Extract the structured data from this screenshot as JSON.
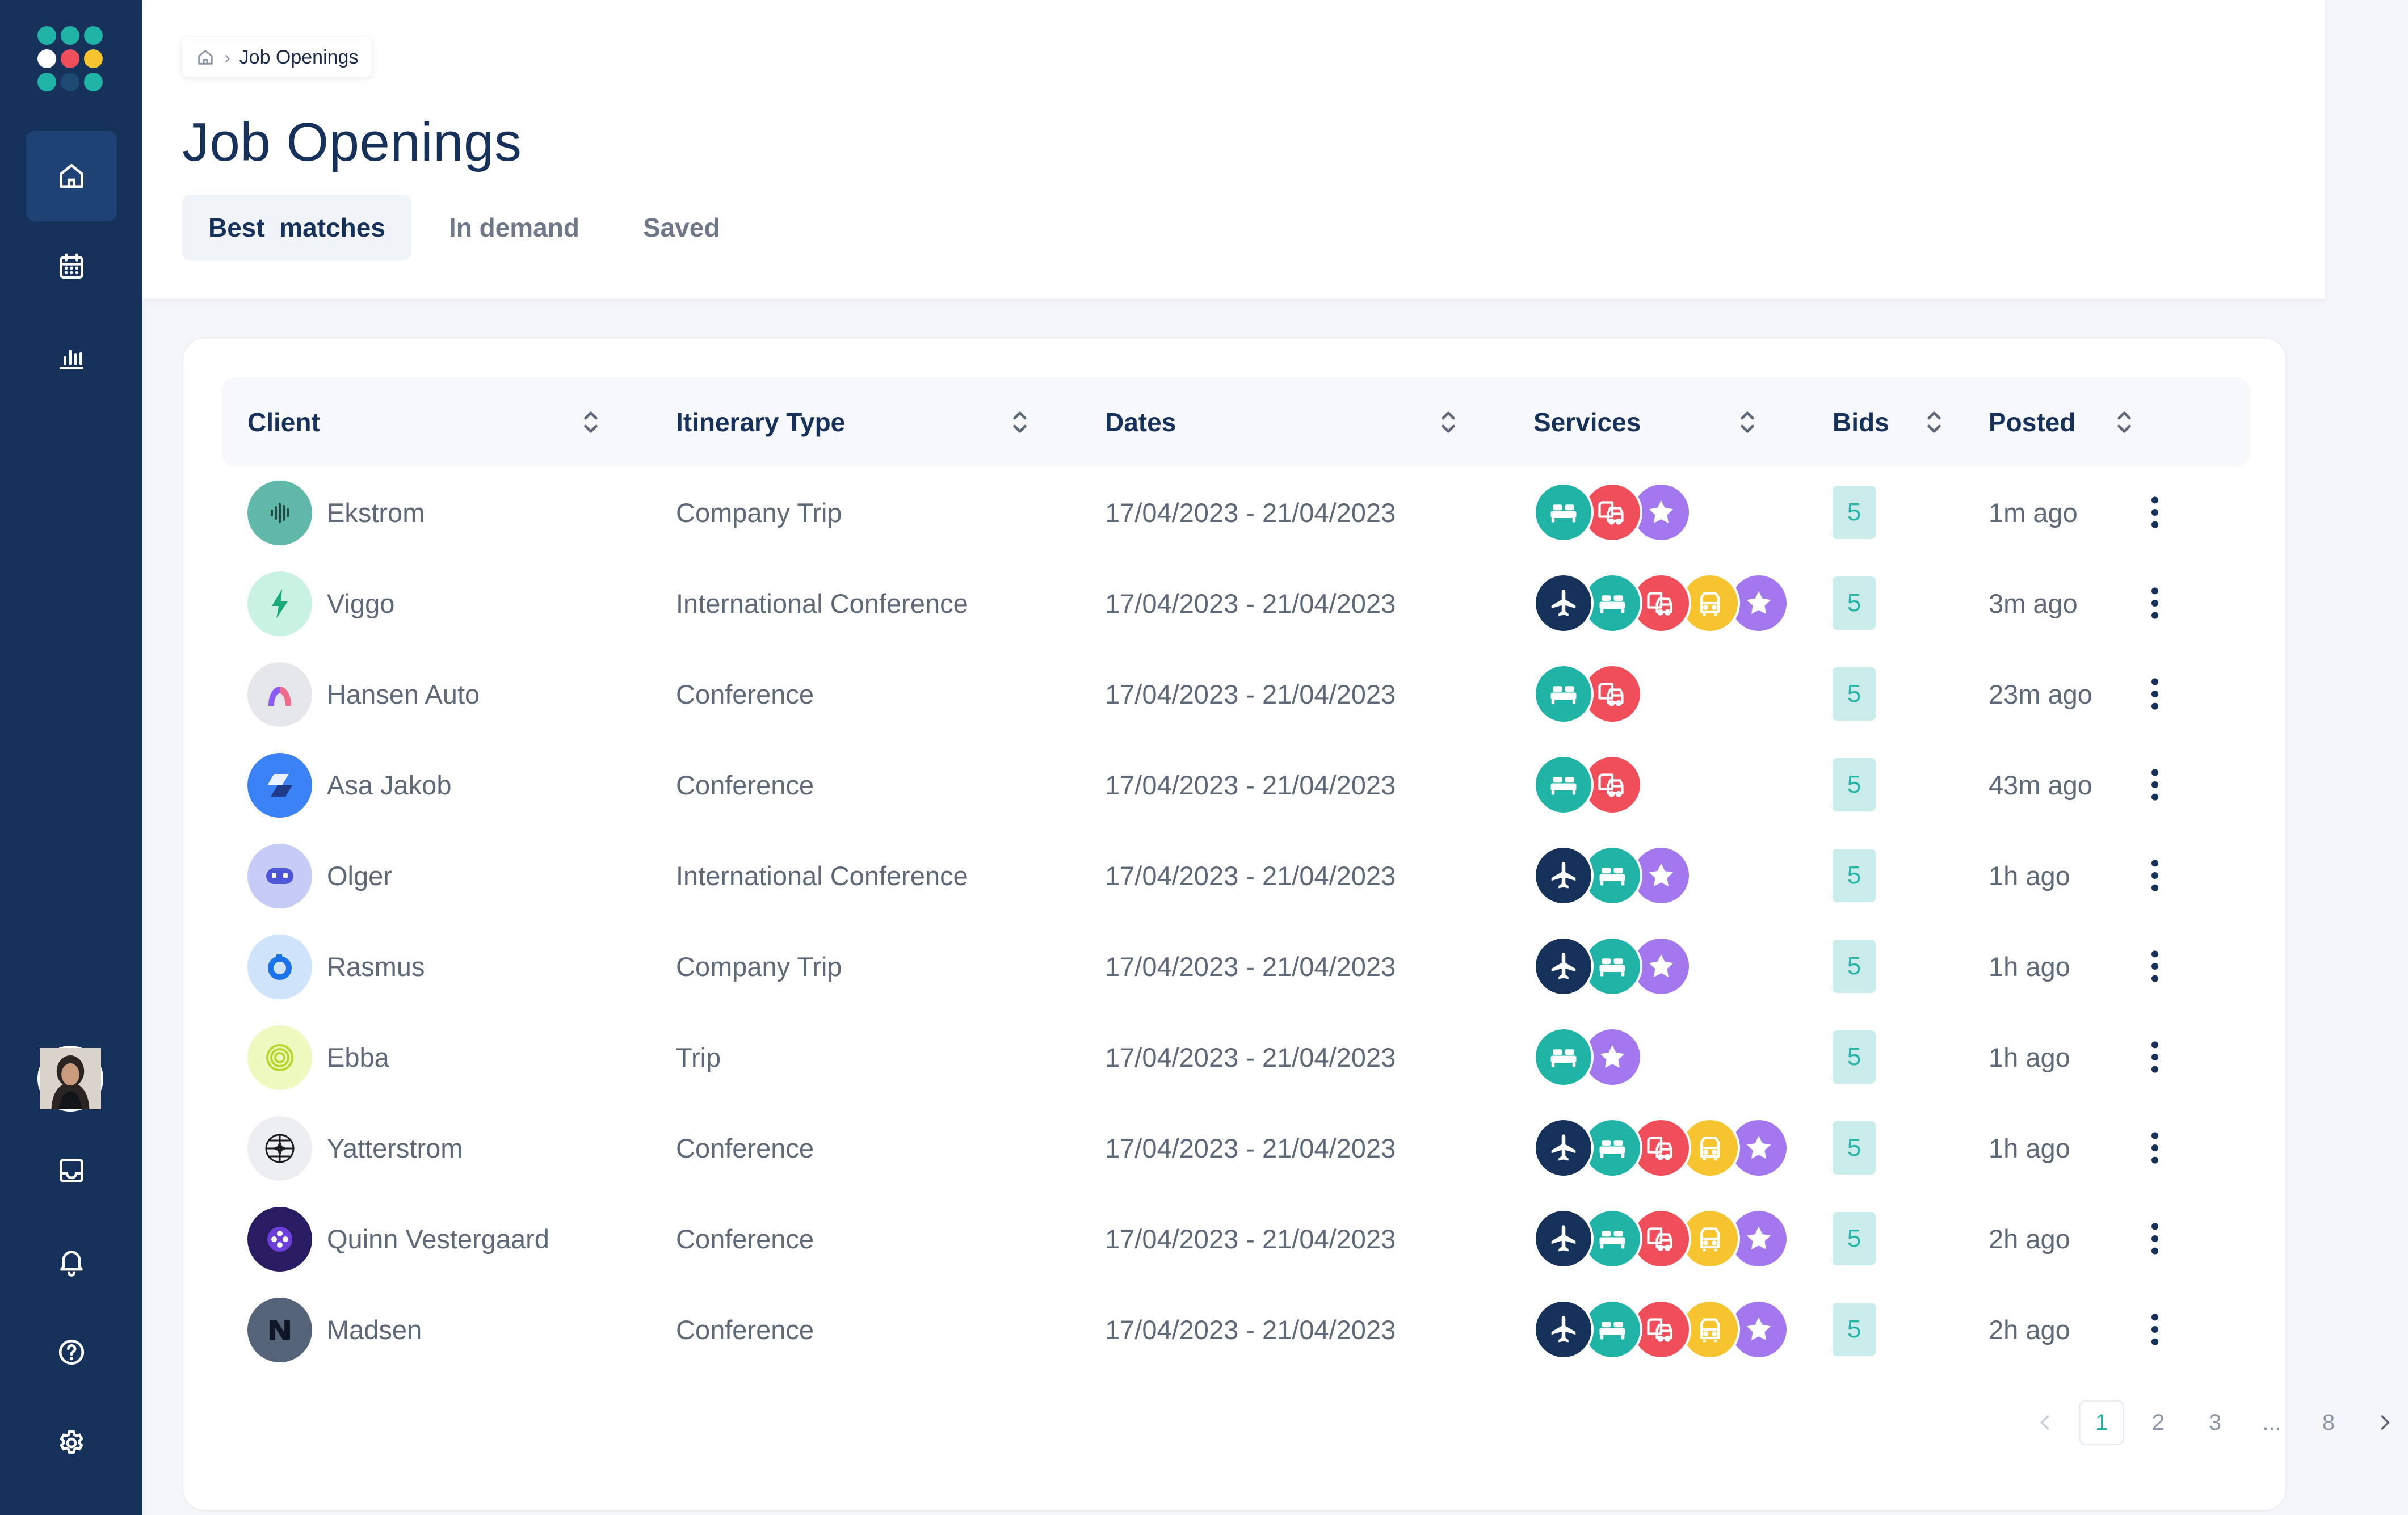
{
  "sidebar": {
    "logo_dots": [
      "#1fb4a5",
      "#1fb4a5",
      "#1fb4a5",
      "#ffffff",
      "#ef4e5a",
      "#f6c42f",
      "#1fb4a5",
      "#1d4a72",
      "#1fb4a5"
    ],
    "items": [
      {
        "name": "home-icon",
        "active": true
      },
      {
        "name": "calendar-icon",
        "active": false
      },
      {
        "name": "chart-icon",
        "active": false
      },
      {
        "name": "inbox-icon",
        "active": false
      },
      {
        "name": "bell-icon",
        "active": false
      },
      {
        "name": "help-icon",
        "active": false
      },
      {
        "name": "gear-icon",
        "active": false
      }
    ]
  },
  "breadcrumb": {
    "current": "Job Openings"
  },
  "page": {
    "title": "Job Openings"
  },
  "tabs": [
    {
      "label": "Best  matches",
      "active": true
    },
    {
      "label": "In demand",
      "active": false
    },
    {
      "label": "Saved",
      "active": false
    }
  ],
  "table": {
    "columns": [
      "Client",
      "Itinerary Type",
      "Dates",
      "Services",
      "Bids",
      "Posted"
    ],
    "rows": [
      {
        "client": "Ekstrom",
        "logo": "waveform",
        "type": "Company Trip",
        "dates": "17/04/2023 - 21/04/2023",
        "services": [
          "hotel",
          "car",
          "star"
        ],
        "bids": "5",
        "posted": "1m ago"
      },
      {
        "client": "Viggo",
        "logo": "bolt",
        "type": "International Conference",
        "dates": "17/04/2023 - 21/04/2023",
        "services": [
          "flight",
          "hotel",
          "car",
          "transfer",
          "star"
        ],
        "bids": "5",
        "posted": "3m ago"
      },
      {
        "client": "Hansen Auto",
        "logo": "arch",
        "type": "Conference",
        "dates": "17/04/2023 - 21/04/2023",
        "services": [
          "hotel",
          "car"
        ],
        "bids": "5",
        "posted": "23m ago"
      },
      {
        "client": "Asa Jakob",
        "logo": "slant",
        "type": "Conference",
        "dates": "17/04/2023 - 21/04/2023",
        "services": [
          "hotel",
          "car"
        ],
        "bids": "5",
        "posted": "43m ago"
      },
      {
        "client": "Olger",
        "logo": "robot",
        "type": "International Conference",
        "dates": "17/04/2023 - 21/04/2023",
        "services": [
          "flight",
          "hotel",
          "star"
        ],
        "bids": "5",
        "posted": "1h ago"
      },
      {
        "client": "Rasmus",
        "logo": "ring",
        "type": "Company Trip",
        "dates": "17/04/2023 - 21/04/2023",
        "services": [
          "flight",
          "hotel",
          "star"
        ],
        "bids": "5",
        "posted": "1h ago"
      },
      {
        "client": "Ebba",
        "logo": "spiral",
        "type": "Trip",
        "dates": "17/04/2023 - 21/04/2023",
        "services": [
          "hotel",
          "star"
        ],
        "bids": "5",
        "posted": "1h ago"
      },
      {
        "client": "Yatterstrom",
        "logo": "globe",
        "type": "Conference",
        "dates": "17/04/2023 - 21/04/2023",
        "services": [
          "flight",
          "hotel",
          "car",
          "transfer",
          "star"
        ],
        "bids": "5",
        "posted": "1h ago"
      },
      {
        "client": "Quinn Vestergaard",
        "logo": "dots",
        "type": "Conference",
        "dates": "17/04/2023 - 21/04/2023",
        "services": [
          "flight",
          "hotel",
          "car",
          "transfer",
          "star"
        ],
        "bids": "5",
        "posted": "2h ago"
      },
      {
        "client": "Madsen",
        "logo": "n-mark",
        "type": "Conference",
        "dates": "17/04/2023 - 21/04/2023",
        "services": [
          "flight",
          "hotel",
          "car",
          "transfer",
          "star"
        ],
        "bids": "5",
        "posted": "2h ago"
      }
    ]
  },
  "service_colors": {
    "flight": "#16325b",
    "hotel": "#1fb4a5",
    "car": "#ef4e5a",
    "transfer": "#f6c42f",
    "star": "#a377ee"
  },
  "pagination": {
    "pages": [
      "1",
      "2",
      "3",
      "...",
      "8"
    ],
    "current": "1"
  }
}
